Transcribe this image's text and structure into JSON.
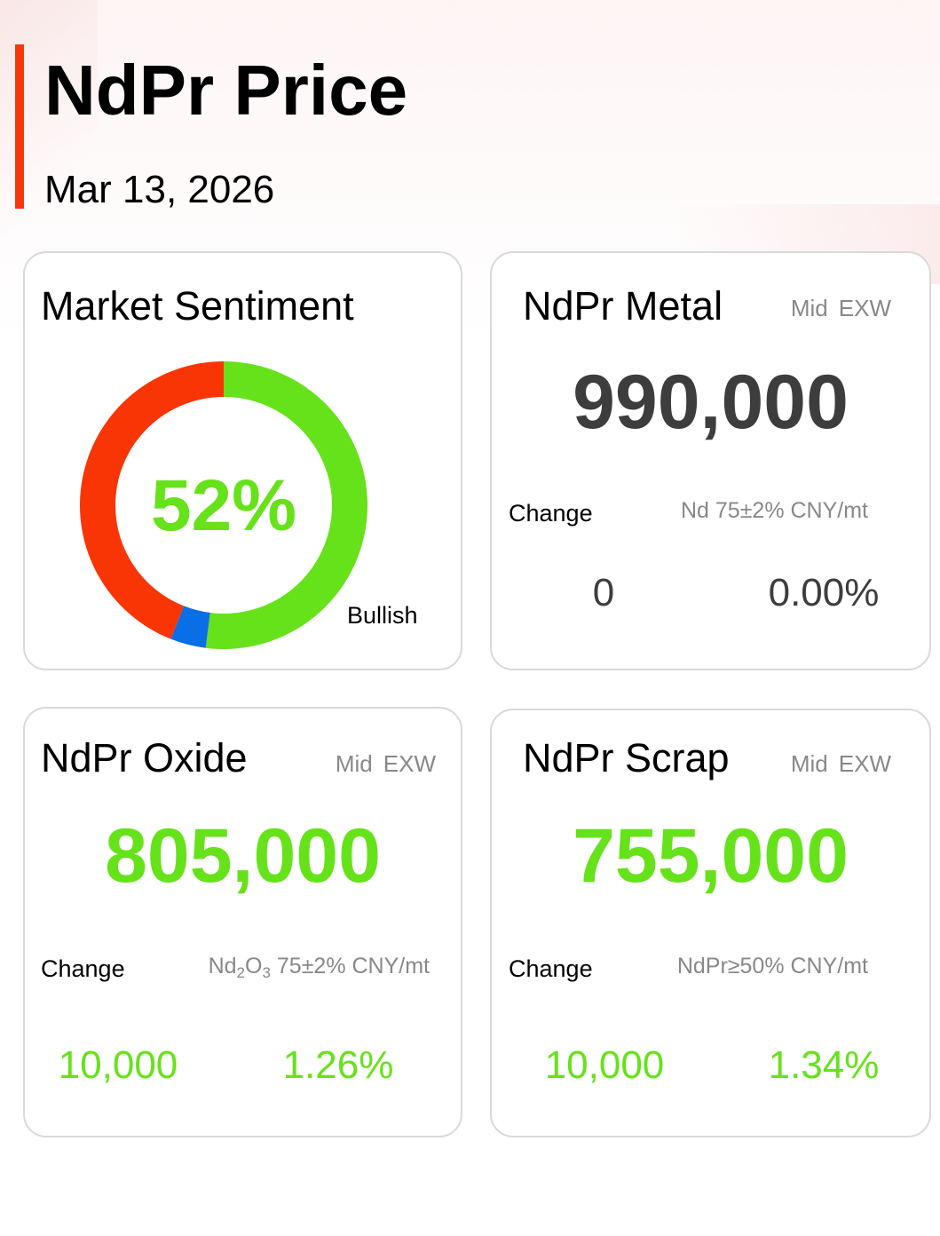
{
  "header": {
    "title": "NdPr Price",
    "date": "Mar 13, 2026",
    "accent_color": "#f4380c"
  },
  "sentiment": {
    "title": "Market Sentiment",
    "percent_label": "52%",
    "caption": "Bullish",
    "segments": [
      {
        "name": "bullish",
        "percent": 52,
        "color": "#66e21a"
      },
      {
        "name": "neutral",
        "percent": 4,
        "color": "#0a6ee6"
      },
      {
        "name": "bearish",
        "percent": 44,
        "color": "#f93505"
      }
    ]
  },
  "metal": {
    "title": "NdPr Metal",
    "tag1": "Mid",
    "tag2": "EXW",
    "price": "990,000",
    "change_label": "Change",
    "spec": "Nd 75±2% CNY/mt",
    "change_value": "0",
    "change_percent": "0.00%"
  },
  "oxide": {
    "title": "NdPr Oxide",
    "tag1": "Mid",
    "tag2": "EXW",
    "price": "805,000",
    "change_label": "Change",
    "spec_base": "Nd",
    "spec_sub1": "2",
    "spec_mid": "O",
    "spec_sub2": "3",
    "spec_rest": " 75±2% CNY/mt",
    "change_value": "10,000",
    "change_percent": "1.26%"
  },
  "scrap": {
    "title": "NdPr Scrap",
    "tag1": "Mid",
    "tag2": "EXW",
    "price": "755,000",
    "change_label": "Change",
    "spec": "NdPr≥50% CNY/mt",
    "change_value": "10,000",
    "change_percent": "1.34%"
  },
  "colors": {
    "up": "#66e21a",
    "flat": "#3d3d3d",
    "muted": "#888888",
    "card_border": "#d9d9d9"
  }
}
